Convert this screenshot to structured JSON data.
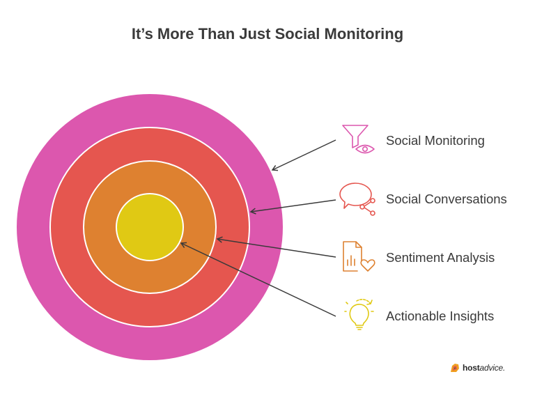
{
  "title": "It’s More Than Just Social Monitoring",
  "colors": {
    "outer_ring": "#dc57ae",
    "second_ring": "#e5564f",
    "third_ring": "#de8130",
    "core": "#e0c914",
    "funnel_icon": "#dc57ae",
    "chat_icon": "#e5564f",
    "report_icon": "#de8130",
    "bulb_icon": "#e0c914",
    "text": "#3a3a3a"
  },
  "layers": [
    {
      "label": "Social Monitoring",
      "icon": "funnel-eye-icon"
    },
    {
      "label": "Social Conversations",
      "icon": "chat-share-icon"
    },
    {
      "label": "Sentiment Analysis",
      "icon": "report-heart-icon"
    },
    {
      "label": "Actionable Insights",
      "icon": "lightbulb-icon"
    }
  ],
  "brand": {
    "bold": "host",
    "italic": "advice."
  }
}
